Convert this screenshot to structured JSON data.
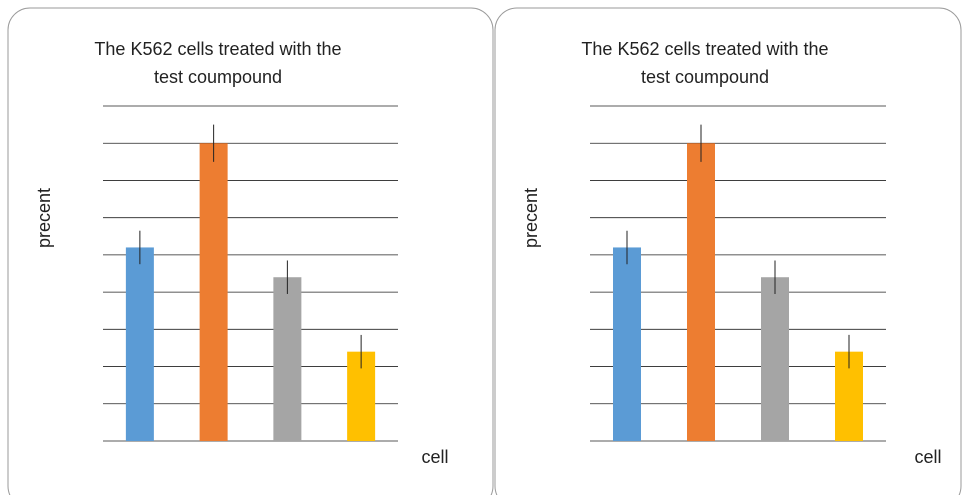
{
  "chart_data": [
    {
      "type": "bar",
      "title": [
        "The K562 cells treated with the",
        "test coumpound"
      ],
      "ylabel": "precent",
      "xlabel": "cell",
      "categories": [
        null,
        null,
        null,
        null
      ],
      "values": [
        5.2,
        8,
        4.4,
        2.4
      ],
      "errors": [
        0.45,
        0.5,
        0.45,
        0.45
      ],
      "colors": [
        "#5b9bd5",
        "#ed7d31",
        "#a5a5a5",
        "#ffc000"
      ],
      "ylim": [
        0,
        9
      ],
      "yticks": [
        0,
        1,
        2,
        3,
        4,
        5,
        6,
        7,
        8,
        9
      ],
      "grid": true
    },
    {
      "type": "bar",
      "title": [
        "The K562 cells treated with the",
        "test coumpound"
      ],
      "ylabel": "precent",
      "xlabel": "cell",
      "categories": [
        null,
        null,
        null,
        null
      ],
      "values": [
        5.2,
        8,
        4.4,
        2.4
      ],
      "errors": [
        0.45,
        0.5,
        0.45,
        0.45
      ],
      "colors": [
        "#5b9bd5",
        "#ed7d31",
        "#a5a5a5",
        "#ffc000"
      ],
      "ylim": [
        0,
        9
      ],
      "yticks": [
        0,
        1,
        2,
        3,
        4,
        5,
        6,
        7,
        8,
        9
      ],
      "grid": true
    }
  ]
}
